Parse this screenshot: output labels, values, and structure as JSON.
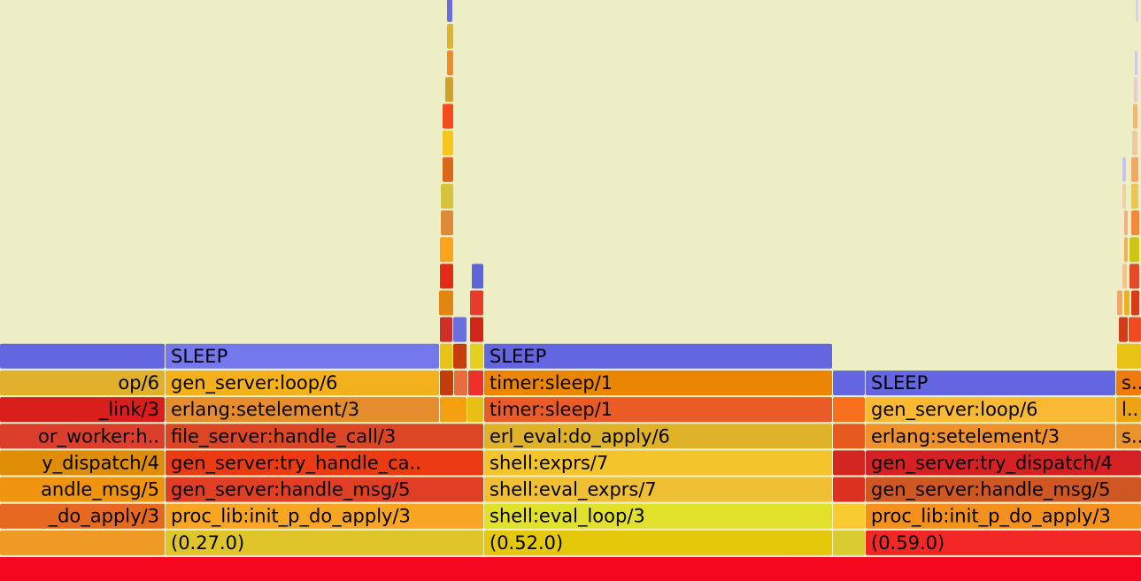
{
  "chart_data": {
    "type": "flamegraph",
    "colors": {
      "background": "#eeeec6",
      "root": "#f5081f",
      "sleep": "#6465e0"
    },
    "frames": [
      {
        "id": "root",
        "label": "",
        "start": 0,
        "end": 1289,
        "depth": 0,
        "color": "#f5081f"
      },
      {
        "id": "f-p1-0",
        "label": "",
        "start": 0,
        "end": 186,
        "depth": 1,
        "color": "#ee9a24"
      },
      {
        "id": "f-p1-1",
        "label": "_do_apply/3",
        "start": 0,
        "end": 186,
        "depth": 2,
        "color": "#e6691f"
      },
      {
        "id": "f-p1-2",
        "label": "andle_msg/5",
        "start": 0,
        "end": 186,
        "depth": 3,
        "color": "#f0930e"
      },
      {
        "id": "f-p1-3",
        "label": "y_dispatch/4",
        "start": 0,
        "end": 186,
        "depth": 4,
        "color": "#df8c06"
      },
      {
        "id": "f-p1-4",
        "label": "or_worker:h..",
        "start": 0,
        "end": 186,
        "depth": 5,
        "color": "#db3f2b"
      },
      {
        "id": "f-p1-5",
        "label": "_link/3",
        "start": 0,
        "end": 186,
        "depth": 6,
        "color": "#d91e1c"
      },
      {
        "id": "f-p1-6",
        "label": "op/6",
        "start": 0,
        "end": 186,
        "depth": 7,
        "color": "#e2b02c"
      },
      {
        "id": "f-p1-7",
        "label": "",
        "start": 0,
        "end": 186,
        "depth": 8,
        "color": "#6465e0"
      },
      {
        "id": "f-p2-0",
        "label": "(0.27.0)",
        "start": 187,
        "end": 546,
        "depth": 1,
        "color": "#dfc52a"
      },
      {
        "id": "f-p2-1",
        "label": "proc_lib:init_p_do_apply/3",
        "start": 187,
        "end": 546,
        "depth": 2,
        "color": "#f7a523"
      },
      {
        "id": "f-p2-2",
        "label": "gen_server:handle_msg/5",
        "start": 187,
        "end": 546,
        "depth": 3,
        "color": "#e03f24"
      },
      {
        "id": "f-p2-3",
        "label": "gen_server:try_handle_ca..",
        "start": 187,
        "end": 546,
        "depth": 4,
        "color": "#ec3b12"
      },
      {
        "id": "f-p2-4",
        "label": "file_server:handle_call/3",
        "start": 187,
        "end": 546,
        "depth": 5,
        "color": "#dc4624"
      },
      {
        "id": "f-p2-5",
        "label": "erlang:setelement/3",
        "start": 187,
        "end": 496,
        "depth": 6,
        "color": "#e58c2e"
      },
      {
        "id": "f-p2-6",
        "label": "gen_server:loop/6",
        "start": 187,
        "end": 496,
        "depth": 7,
        "color": "#f5b11d"
      },
      {
        "id": "f-p2-7",
        "label": "SLEEP",
        "start": 187,
        "end": 496,
        "depth": 8,
        "color": "#7478ec"
      },
      {
        "id": "s-a1",
        "label": "",
        "start": 497,
        "end": 527,
        "depth": 6,
        "color": "#f5a012"
      },
      {
        "id": "s-a2",
        "label": "",
        "start": 528,
        "end": 546,
        "depth": 6,
        "color": "#e8c015"
      },
      {
        "id": "s-b1",
        "label": "",
        "start": 497,
        "end": 512,
        "depth": 7,
        "color": "#c53c0c"
      },
      {
        "id": "s-b2",
        "label": "",
        "start": 513,
        "end": 528,
        "depth": 7,
        "color": "#e86c3d"
      },
      {
        "id": "s-b3",
        "label": "",
        "start": 529,
        "end": 546,
        "depth": 7,
        "color": "#ee2f2a"
      },
      {
        "id": "s-c1",
        "label": "",
        "start": 497,
        "end": 511,
        "depth": 8,
        "color": "#e7c317"
      },
      {
        "id": "s-c2",
        "label": "",
        "start": 512,
        "end": 527,
        "depth": 8,
        "color": "#c63d10"
      },
      {
        "id": "s-c3",
        "label": "",
        "start": 531,
        "end": 546,
        "depth": 8,
        "color": "#e4d020"
      },
      {
        "id": "s-d1",
        "label": "",
        "start": 497,
        "end": 511,
        "depth": 9,
        "color": "#cf2f26"
      },
      {
        "id": "s-d2",
        "label": "",
        "start": 512,
        "end": 527,
        "depth": 9,
        "color": "#6870e0"
      },
      {
        "id": "s-d3",
        "label": "",
        "start": 531,
        "end": 546,
        "depth": 9,
        "color": "#d22419"
      },
      {
        "id": "s-e1",
        "label": "",
        "start": 496,
        "end": 512,
        "depth": 10,
        "color": "#e08510"
      },
      {
        "id": "s-e2",
        "label": "",
        "start": 531,
        "end": 546,
        "depth": 10,
        "color": "#e83b2e"
      },
      {
        "id": "s-f1",
        "label": "",
        "start": 497,
        "end": 512,
        "depth": 11,
        "color": "#e32b17"
      },
      {
        "id": "s-f2",
        "label": "",
        "start": 533,
        "end": 546,
        "depth": 11,
        "color": "#6064dc"
      },
      {
        "id": "s-g1",
        "label": "",
        "start": 497,
        "end": 512,
        "depth": 12,
        "color": "#f7a51a"
      },
      {
        "id": "s-h1",
        "label": "",
        "start": 498,
        "end": 512,
        "depth": 13,
        "color": "#dd8a3a"
      },
      {
        "id": "s-i1",
        "label": "",
        "start": 498,
        "end": 512,
        "depth": 14,
        "color": "#d6c23c"
      },
      {
        "id": "s-j1",
        "label": "",
        "start": 500,
        "end": 512,
        "depth": 15,
        "color": "#d8681a"
      },
      {
        "id": "s-k1",
        "label": "",
        "start": 500,
        "end": 512,
        "depth": 16,
        "color": "#f6c61f"
      },
      {
        "id": "s-l1",
        "label": "",
        "start": 500,
        "end": 512,
        "depth": 17,
        "color": "#f34a1e"
      },
      {
        "id": "s-m1",
        "label": "",
        "start": 503,
        "end": 512,
        "depth": 18,
        "color": "#d1a22a"
      },
      {
        "id": "s-n1",
        "label": "",
        "start": 505,
        "end": 512,
        "depth": 19,
        "color": "#f08a2a"
      },
      {
        "id": "s-o1",
        "label": "",
        "start": 505,
        "end": 512,
        "depth": 20,
        "color": "#dcb628"
      },
      {
        "id": "s-p1",
        "label": "",
        "start": 505,
        "end": 511,
        "depth": 21,
        "color": "#6a6edd"
      },
      {
        "id": "f-p3-0",
        "label": "(0.52.0)",
        "start": 547,
        "end": 940,
        "depth": 1,
        "color": "#e5c80a"
      },
      {
        "id": "f-p3-1",
        "label": "shell:eval_loop/3",
        "start": 547,
        "end": 940,
        "depth": 2,
        "color": "#e1e12c"
      },
      {
        "id": "f-p3-2",
        "label": "shell:eval_exprs/7",
        "start": 547,
        "end": 940,
        "depth": 3,
        "color": "#f0bf33"
      },
      {
        "id": "f-p3-3",
        "label": "shell:exprs/7",
        "start": 547,
        "end": 940,
        "depth": 4,
        "color": "#f4c42c"
      },
      {
        "id": "f-p3-4",
        "label": "erl_eval:do_apply/6",
        "start": 547,
        "end": 940,
        "depth": 5,
        "color": "#e0b22a"
      },
      {
        "id": "f-p3-5",
        "label": "timer:sleep/1",
        "start": 547,
        "end": 940,
        "depth": 6,
        "color": "#ea5b25"
      },
      {
        "id": "f-p3-6",
        "label": "timer:sleep/1",
        "start": 547,
        "end": 940,
        "depth": 7,
        "color": "#ea8602"
      },
      {
        "id": "f-p3-7",
        "label": "SLEEP",
        "start": 547,
        "end": 940,
        "depth": 8,
        "color": "#6465e0"
      },
      {
        "id": "f-g-0",
        "label": "",
        "start": 941,
        "end": 977,
        "depth": 1,
        "color": "#d8cc30"
      },
      {
        "id": "f-g-1",
        "label": "",
        "start": 941,
        "end": 977,
        "depth": 2,
        "color": "#f9cb32"
      },
      {
        "id": "f-g-2",
        "label": "",
        "start": 941,
        "end": 977,
        "depth": 3,
        "color": "#dd3020"
      },
      {
        "id": "f-g-3",
        "label": "",
        "start": 941,
        "end": 977,
        "depth": 4,
        "color": "#d42620"
      },
      {
        "id": "f-g-4",
        "label": "",
        "start": 941,
        "end": 977,
        "depth": 5,
        "color": "#e65a20"
      },
      {
        "id": "f-g-5",
        "label": "",
        "start": 941,
        "end": 977,
        "depth": 6,
        "color": "#f86f20"
      },
      {
        "id": "f-g-6",
        "label": "",
        "start": 941,
        "end": 977,
        "depth": 7,
        "color": "#6465e0"
      },
      {
        "id": "f-p4-0",
        "label": "(0.59.0)",
        "start": 978,
        "end": 1289,
        "depth": 1,
        "color": "#f42727"
      },
      {
        "id": "f-p4-1",
        "label": "proc_lib:init_p_do_apply/3",
        "start": 978,
        "end": 1289,
        "depth": 2,
        "color": "#f3901e"
      },
      {
        "id": "f-p4-2",
        "label": "gen_server:handle_msg/5",
        "start": 978,
        "end": 1289,
        "depth": 3,
        "color": "#d05722"
      },
      {
        "id": "f-p4-3",
        "label": "gen_server:try_dispatch/4",
        "start": 978,
        "end": 1289,
        "depth": 4,
        "color": "#d52124"
      },
      {
        "id": "f-p4-4",
        "label": "erlang:setelement/3",
        "start": 978,
        "end": 1260,
        "depth": 5,
        "color": "#f0922c"
      },
      {
        "id": "f-p4-5",
        "label": "gen_server:loop/6",
        "start": 978,
        "end": 1260,
        "depth": 6,
        "color": "#f9b934"
      },
      {
        "id": "f-p4-6",
        "label": "SLEEP",
        "start": 978,
        "end": 1260,
        "depth": 7,
        "color": "#6465e0"
      },
      {
        "id": "f-p4-r5",
        "label": "s..",
        "start": 1261,
        "end": 1289,
        "depth": 5,
        "color": "#ec9329"
      },
      {
        "id": "f-p4-r6",
        "label": "l..",
        "start": 1261,
        "end": 1289,
        "depth": 6,
        "color": "#eea312"
      },
      {
        "id": "f-p4-r7",
        "label": "s..",
        "start": 1261,
        "end": 1289,
        "depth": 7,
        "color": "#ef7b0d"
      },
      {
        "id": "t-1",
        "label": "",
        "start": 1262,
        "end": 1289,
        "depth": 8,
        "color": "#e8c214"
      },
      {
        "id": "t-2",
        "label": "",
        "start": 1264,
        "end": 1274,
        "depth": 9,
        "color": "#d33a1a"
      },
      {
        "id": "t-3",
        "label": "",
        "start": 1275,
        "end": 1289,
        "depth": 9,
        "color": "#f14a20"
      },
      {
        "id": "t-4",
        "label": "",
        "start": 1262,
        "end": 1268,
        "depth": 10,
        "color": "#f0a86a"
      },
      {
        "id": "t-5",
        "label": "",
        "start": 1270,
        "end": 1276,
        "depth": 10,
        "color": "#ecb020"
      },
      {
        "id": "t-6",
        "label": "",
        "start": 1278,
        "end": 1287,
        "depth": 10,
        "color": "#da3a18"
      },
      {
        "id": "t-7",
        "label": "",
        "start": 1268,
        "end": 1273,
        "depth": 11,
        "color": "#f2c88a"
      },
      {
        "id": "t-8",
        "label": "",
        "start": 1276,
        "end": 1287,
        "depth": 11,
        "color": "#e24a2a"
      },
      {
        "id": "t-9",
        "label": "",
        "start": 1270,
        "end": 1274,
        "depth": 12,
        "color": "#eab25a"
      },
      {
        "id": "t-10",
        "label": "",
        "start": 1276,
        "end": 1287,
        "depth": 12,
        "color": "#cfc418"
      },
      {
        "id": "t-11",
        "label": "",
        "start": 1270,
        "end": 1274,
        "depth": 13,
        "color": "#f2b080"
      },
      {
        "id": "t-12",
        "label": "",
        "start": 1278,
        "end": 1287,
        "depth": 13,
        "color": "#f08a3a"
      },
      {
        "id": "t-13",
        "label": "",
        "start": 1268,
        "end": 1272,
        "depth": 14,
        "color": "#f0d0a0"
      },
      {
        "id": "t-14",
        "label": "",
        "start": 1278,
        "end": 1286,
        "depth": 14,
        "color": "#e8c850"
      },
      {
        "id": "t-15",
        "label": "",
        "start": 1268,
        "end": 1272,
        "depth": 15,
        "color": "#c8c4e8"
      },
      {
        "id": "t-16",
        "label": "",
        "start": 1278,
        "end": 1286,
        "depth": 15,
        "color": "#f0a868"
      },
      {
        "id": "t-17",
        "label": "",
        "start": 1279,
        "end": 1285,
        "depth": 16,
        "color": "#f0c8a0"
      },
      {
        "id": "t-18",
        "label": "",
        "start": 1280,
        "end": 1285,
        "depth": 17,
        "color": "#f0b878"
      },
      {
        "id": "t-19",
        "label": "",
        "start": 1281,
        "end": 1285,
        "depth": 18,
        "color": "#e8c8d8"
      },
      {
        "id": "t-20",
        "label": "",
        "start": 1282,
        "end": 1285,
        "depth": 19,
        "color": "#d0c8e8"
      },
      {
        "id": "t-21",
        "label": "",
        "start": 1283,
        "end": 1286,
        "depth": 21,
        "color": "#d8d0f0"
      }
    ]
  }
}
